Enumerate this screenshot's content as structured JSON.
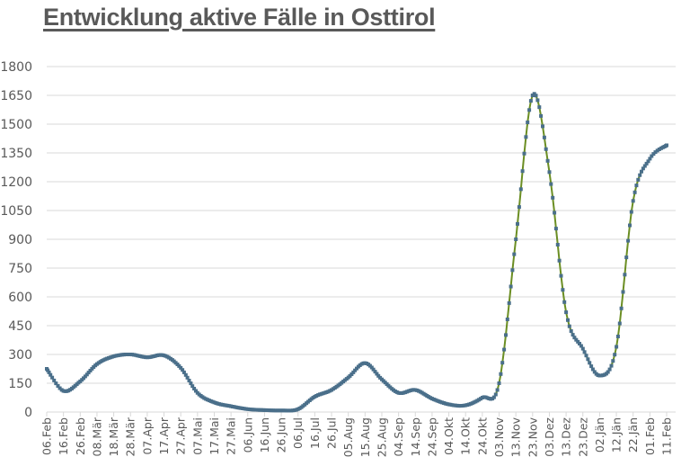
{
  "chart_data": {
    "type": "line",
    "title": "Entwicklung aktive Fälle in Osttirol",
    "xlabel": "",
    "ylabel": "",
    "ylim": [
      0,
      1800
    ],
    "yticks": [
      0,
      150,
      300,
      450,
      600,
      750,
      900,
      1050,
      1200,
      1350,
      1500,
      1650,
      1800
    ],
    "grid": true,
    "legend": null,
    "categories": [
      "06.Feb",
      "16.Feb",
      "26.Feb",
      "08.Mär",
      "18.Mär",
      "28.Mär",
      "07.Apr",
      "17.Apr",
      "27.Apr",
      "07.Mai",
      "17.Mai",
      "27.Mai",
      "06.Jun",
      "16.Jun",
      "26.Jun",
      "06.Jul",
      "16.Jul",
      "26.Jul",
      "05.Aug",
      "15.Aug",
      "25.Aug",
      "04.Sep",
      "14.Sep",
      "24.Sep",
      "04.Okt",
      "14.Okt",
      "24.Okt",
      "03.Nov",
      "13.Nov",
      "23.Nov",
      "03.Dez",
      "13.Dez",
      "23.Dez",
      "02.Jän",
      "12.Jän",
      "22.Jän",
      "01.Feb",
      "11.Feb"
    ],
    "series": [
      {
        "name": "Aktive Fälle",
        "color": "#4a6f8a",
        "line_color": "#6b8e23",
        "values": [
          225,
          110,
          160,
          250,
          290,
          300,
          285,
          295,
          230,
          100,
          50,
          30,
          15,
          10,
          8,
          15,
          80,
          115,
          180,
          255,
          170,
          100,
          115,
          70,
          40,
          35,
          75,
          150,
          900,
          1650,
          1250,
          520,
          330,
          190,
          340,
          1100,
          1320,
          1390
        ]
      }
    ]
  }
}
